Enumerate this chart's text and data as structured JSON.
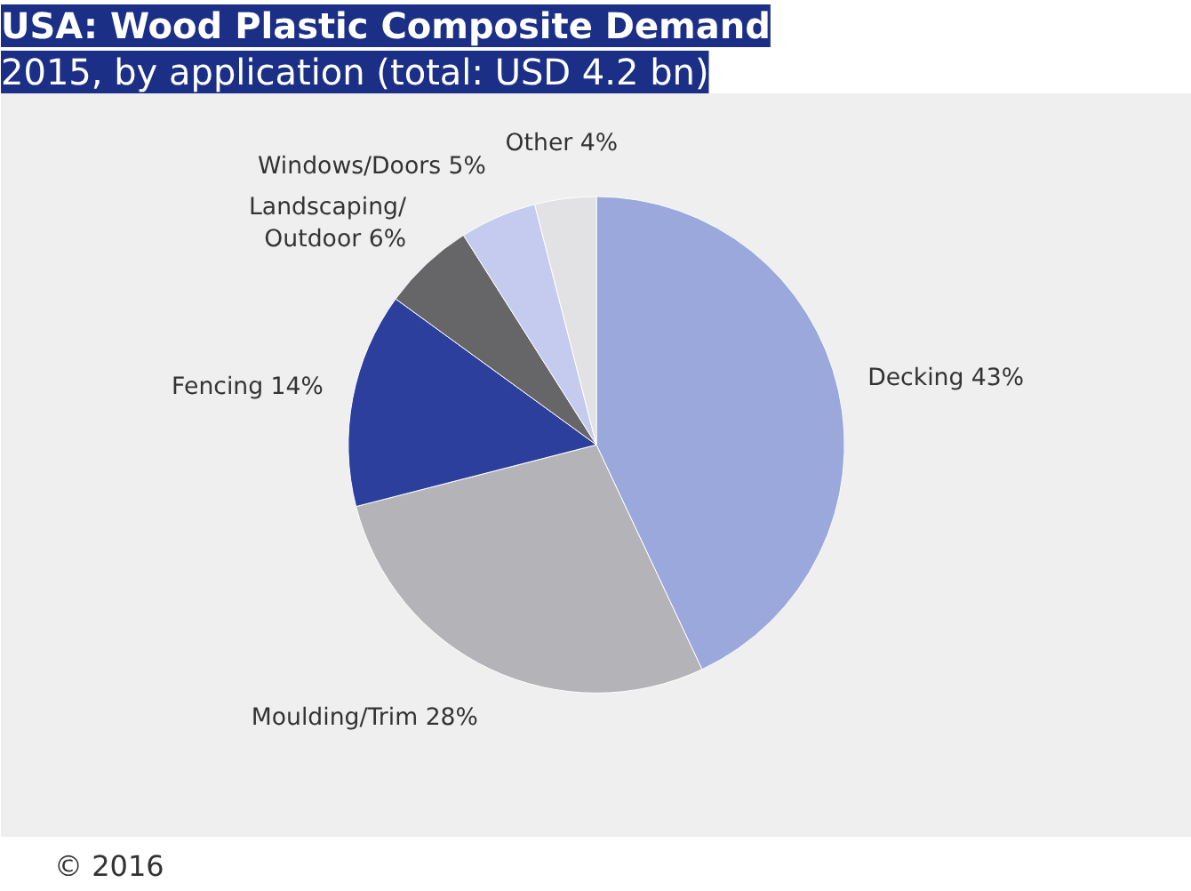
{
  "chart_data": {
    "type": "pie",
    "title": "USA: Wood Plastic Composite Demand",
    "subtitle": "2015, by application (total: USD 4.2 bn)",
    "categories": [
      "Decking",
      "Moulding/Trim",
      "Fencing",
      "Landscaping/\nOutdoor",
      "Windows/Doors",
      "Other"
    ],
    "values": [
      43,
      28,
      14,
      6,
      5,
      4
    ],
    "value_labels": [
      "43%",
      "28%",
      "14%",
      "6%",
      "5%",
      "4%"
    ],
    "colors": [
      "#9aa8dc",
      "#b4b4b8",
      "#2c3f9c",
      "#666668",
      "#c4cbee",
      "#e2e2e4"
    ],
    "annotations": [
      "© 2016"
    ]
  }
}
